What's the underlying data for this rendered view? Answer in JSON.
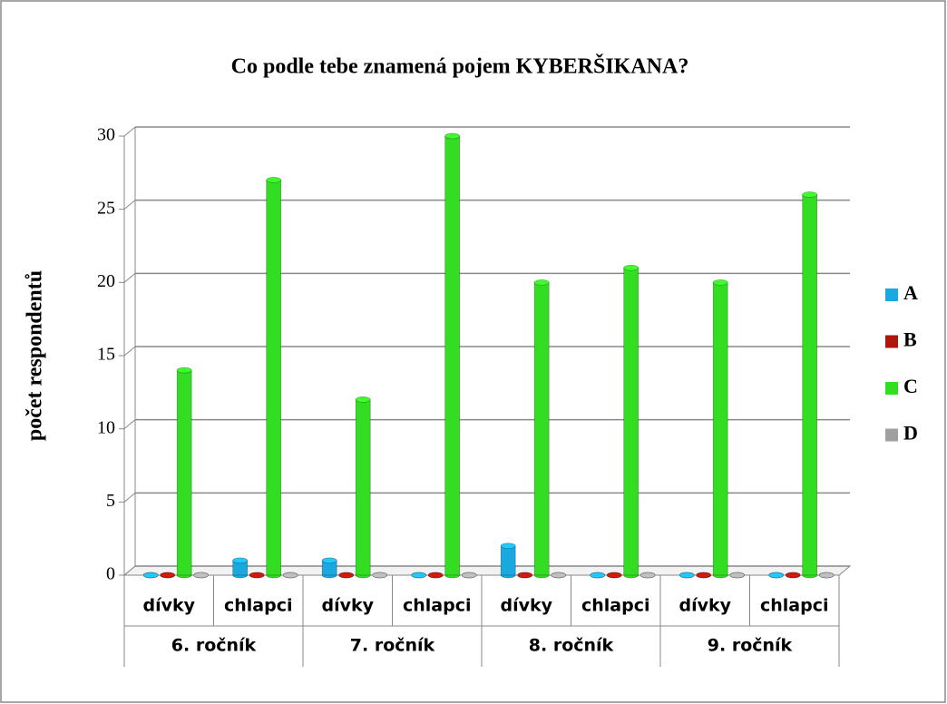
{
  "chart_data": {
    "type": "bar",
    "title": "Co podle tebe znamená pojem KYBERŠIKANA?",
    "y_label": "počet respondentů",
    "categories": [
      "dívky",
      "chlapci",
      "dívky",
      "chlapci",
      "dívky",
      "chlapci",
      "dívky",
      "chlapci"
    ],
    "groups": [
      "6. ročník",
      "7. ročník",
      "8. ročník",
      "9. ročník"
    ],
    "series": [
      {
        "name": "A",
        "color": "#1aa8e0",
        "values": [
          0,
          1,
          1,
          0,
          2,
          0,
          0,
          0
        ]
      },
      {
        "name": "B",
        "color": "#b0140a",
        "values": [
          0,
          0,
          0,
          0,
          0,
          0,
          0,
          0
        ]
      },
      {
        "name": "C",
        "color": "#33dd22",
        "values": [
          14,
          27,
          12,
          30,
          20,
          21,
          20,
          26
        ]
      },
      {
        "name": "D",
        "color": "#a0a0a0",
        "values": [
          0,
          0,
          0,
          0,
          0,
          0,
          0,
          0
        ]
      }
    ],
    "ylim": [
      0,
      30
    ],
    "yticks": [
      0,
      5,
      10,
      15,
      20,
      25,
      30
    ],
    "grid": true,
    "legend": "right"
  }
}
